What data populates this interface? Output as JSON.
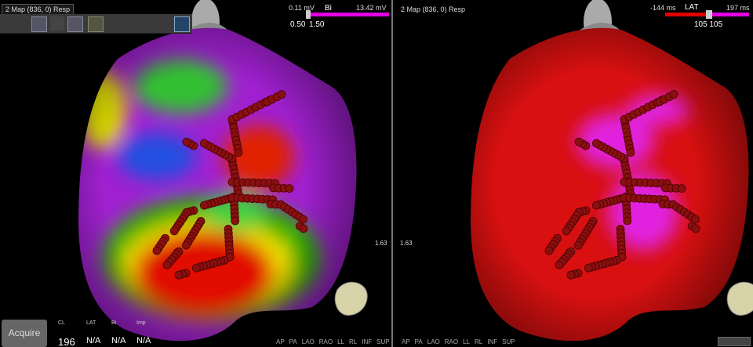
{
  "left_panel": {
    "map_selector": "2 Map (836, 0) Resp",
    "colorbar": {
      "min_label": "0.11 mV",
      "name": "Bi",
      "max_label": "13.42 mV",
      "low_threshold": "0.50",
      "high_threshold": "1.50"
    },
    "slider_label": "1.63",
    "view_buttons": [
      "AP",
      "PA",
      "LAO",
      "RAO",
      "LL",
      "RL",
      "INF",
      "SUP"
    ],
    "acquire_button": "Acquire",
    "readouts": {
      "headers": [
        "CL",
        "LAT",
        "Bi",
        "Imp"
      ],
      "values": [
        "196",
        "N/A",
        "N/A",
        "N/A"
      ]
    }
  },
  "right_panel": {
    "map_selector": "2 Map (836, 0) Resp",
    "colorbar": {
      "min_label": "-144 ms",
      "name": "LAT",
      "max_label": "197 ms",
      "thresholds": "105 105"
    },
    "slider_label": "1.63",
    "view_buttons": [
      "AP",
      "PA",
      "LAO",
      "RAO",
      "LL",
      "RL",
      "INF",
      "SUP"
    ]
  }
}
